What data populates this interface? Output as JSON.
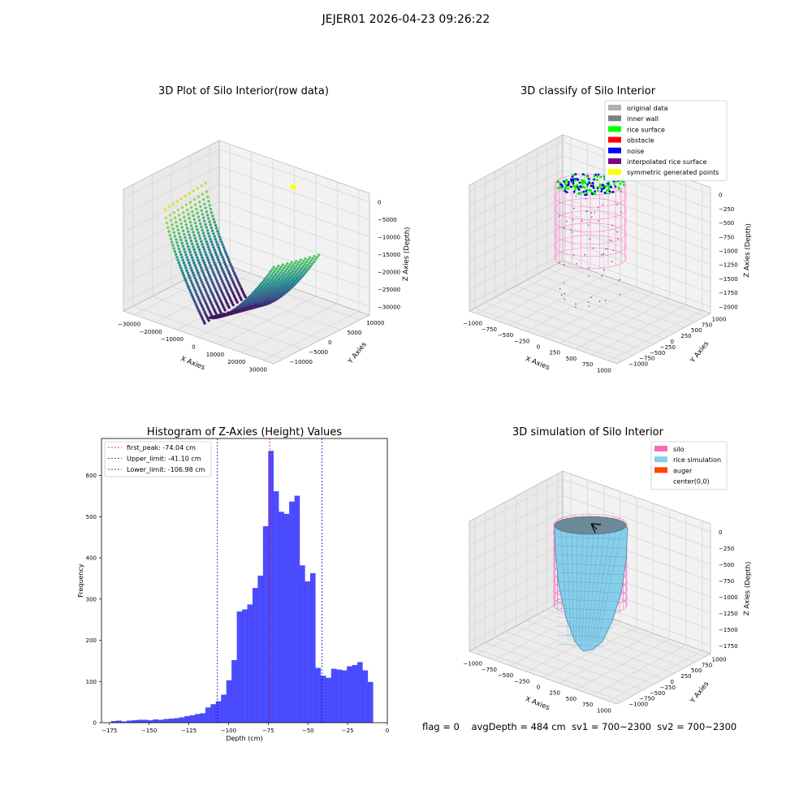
{
  "figure_title": "JEJER01 2026-04-23 09:26:22",
  "footer": {
    "flag": "flag = 0",
    "avg_depth": "avgDepth = 484 cm",
    "sv1": "sv1 = 700~2300",
    "sv2": "sv2 = 700~2300"
  },
  "chart_data": [
    {
      "id": "raw",
      "type": "scatter",
      "title": "3D Plot of Silo Interior(row data)",
      "xlabel": "X Axies",
      "ylabel": "Y Axies",
      "zlabel": "Z Axies (Depth)",
      "xticks": [
        "−30000",
        "−20000",
        "−10000",
        "0",
        "10000",
        "20000",
        "30000"
      ],
      "yticks": [
        "−10000",
        "−5000",
        "0",
        "5000",
        "10000"
      ],
      "zticks": [
        "0",
        "−5000",
        "−10000",
        "−15000",
        "−20000",
        "−25000",
        "−30000"
      ],
      "colormap": "viridis",
      "xlim": [
        -30000,
        30000
      ],
      "ylim": [
        -10000,
        10000
      ],
      "zlim": [
        -32000,
        0
      ],
      "grid": true
    },
    {
      "id": "classify",
      "type": "scatter",
      "title": "3D classify of Silo Interior",
      "xlabel": "X Axies",
      "ylabel": "Y Axies",
      "zlabel": "Z Axies (Depth)",
      "xticks": [
        "−1000",
        "−750",
        "−500",
        "−250",
        "0",
        "250",
        "500",
        "750",
        "1000"
      ],
      "yticks": [
        "−1000",
        "−750",
        "−500",
        "−250",
        "0",
        "250",
        "500",
        "750",
        "1000"
      ],
      "zticks": [
        "0",
        "−250",
        "−500",
        "−750",
        "−1000",
        "−1250",
        "−1500",
        "−1750",
        "−2000"
      ],
      "legend_position": "top-right",
      "legend": [
        {
          "label": "original data",
          "color": "#b0b0b0"
        },
        {
          "label": "inner wall",
          "color": "#808080"
        },
        {
          "label": "rice surface",
          "color": "#00ff00"
        },
        {
          "label": "obstacle",
          "color": "#ff0000"
        },
        {
          "label": "noise",
          "color": "#0000ff"
        },
        {
          "label": "interpolated rice surface",
          "color": "#800080"
        },
        {
          "label": "symmetric generated points",
          "color": "#ffff00"
        }
      ],
      "grid": true
    },
    {
      "id": "hist",
      "type": "bar",
      "title": "Histogram of Z-Axies (Height) Values",
      "xlabel": "Depth (cm)",
      "ylabel": "Frequency",
      "xlim": [
        -180,
        0
      ],
      "ylim": [
        0,
        690
      ],
      "xticks": [
        -175,
        -150,
        -125,
        -100,
        -75,
        -50,
        -25,
        0
      ],
      "yticks": [
        0,
        100,
        200,
        300,
        400,
        500,
        600
      ],
      "bin_start": -174,
      "bin_width": 3.3,
      "values": [
        4,
        5,
        3,
        5,
        6,
        7,
        7,
        6,
        8,
        7,
        9,
        10,
        11,
        13,
        16,
        18,
        21,
        23,
        37,
        45,
        52,
        68,
        103,
        152,
        270,
        275,
        287,
        327,
        357,
        477,
        660,
        562,
        512,
        507,
        537,
        551,
        382,
        343,
        363,
        133,
        114,
        109,
        131,
        129,
        127,
        137,
        140,
        147,
        127,
        99
      ],
      "bar_color": "#0000ff",
      "vlines": [
        {
          "label": "first_peak: -74.04 cm",
          "x": -74.04,
          "color": "#ff0000"
        },
        {
          "label": "Upper_limit: -41.10 cm",
          "x": -41.1,
          "color": "#0000cc"
        },
        {
          "label": "Lower_limit: -106.98 cm",
          "x": -106.98,
          "color": "#0000cc"
        }
      ],
      "legend_position": "top-left",
      "grid": false
    },
    {
      "id": "sim",
      "type": "surface",
      "title": "3D simulation of Silo Interior",
      "xlabel": "X Axies",
      "ylabel": "Y Axies",
      "zlabel": "Z Axies (Depth)",
      "xticks": [
        "−1000",
        "−750",
        "−500",
        "−250",
        "0",
        "250",
        "500",
        "750",
        "1000"
      ],
      "yticks": [
        "−1000",
        "−750",
        "−500",
        "−250",
        "0",
        "250",
        "500",
        "750",
        "1000"
      ],
      "zticks": [
        "0",
        "−250",
        "−500",
        "−750",
        "−1000",
        "−1250",
        "−1500",
        "−1750"
      ],
      "legend_position": "top-right",
      "legend": [
        {
          "label": "silo",
          "color": "#ff69b4"
        },
        {
          "label": "rice simulation",
          "color": "#87ceeb"
        },
        {
          "label": "auger",
          "color": "#ff4500"
        },
        {
          "label": "center(0,0)",
          "color": ""
        }
      ],
      "grid": true
    }
  ]
}
